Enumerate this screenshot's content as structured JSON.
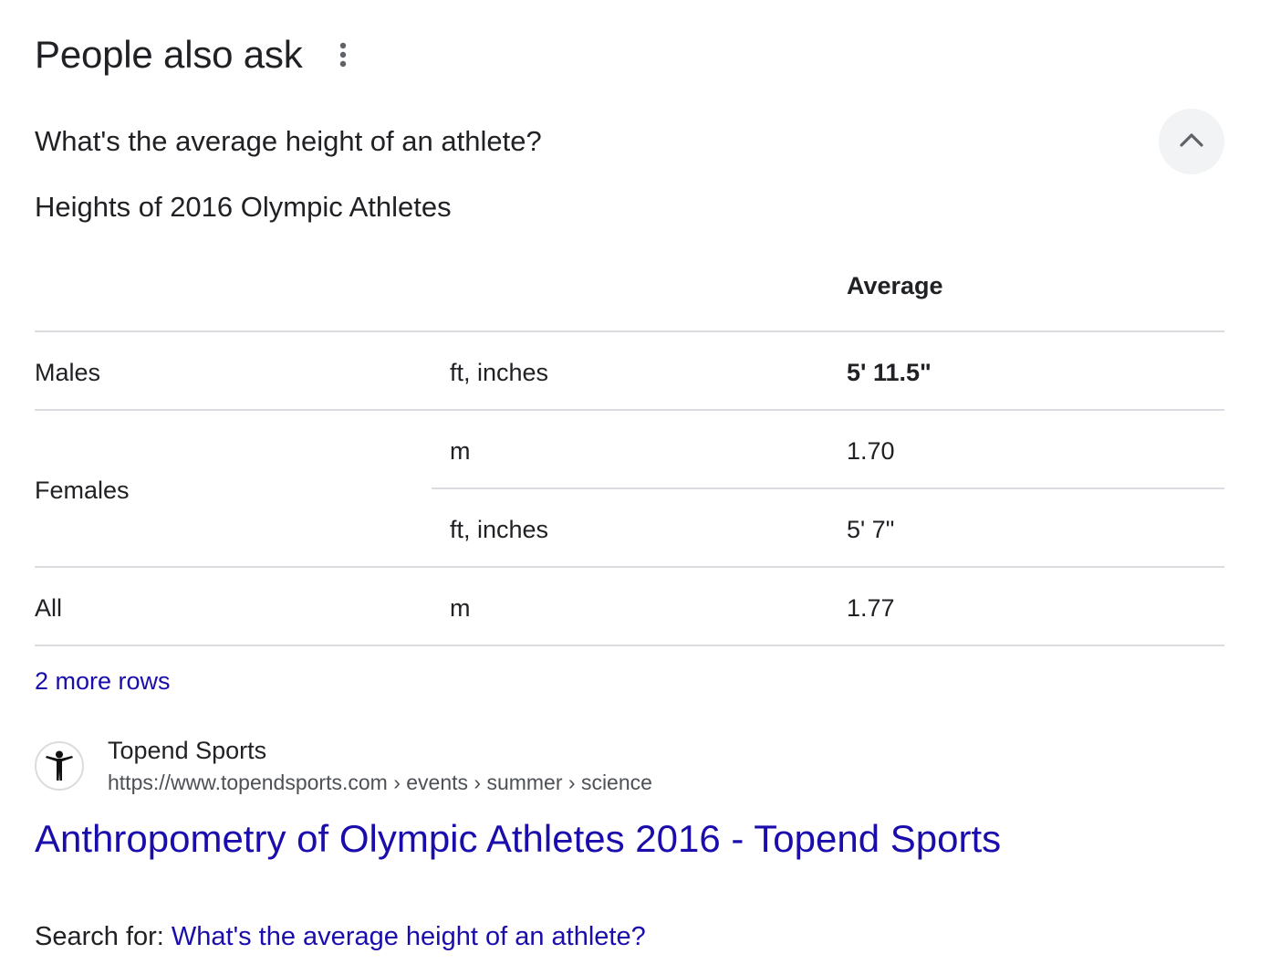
{
  "header": {
    "title": "People also ask",
    "more_icon": "more-vert-icon"
  },
  "question": {
    "text": "What's the average height of an athlete?",
    "toggle_icon": "chevron-up-icon"
  },
  "table": {
    "title": "Heights of 2016 Olympic Athletes",
    "header": [
      "",
      "",
      "Average"
    ],
    "rows": [
      {
        "group": "Males",
        "unit": "ft, inches",
        "value": "5' 11.5\""
      },
      {
        "group": "Females",
        "unit": "m",
        "value": "1.70"
      },
      {
        "group": "",
        "unit": "ft, inches",
        "value": "5' 7\""
      },
      {
        "group": "All",
        "unit": "m",
        "value": "1.77"
      }
    ],
    "more_rows": "2 more rows"
  },
  "source": {
    "favicon": "person-figure-icon",
    "name": "Topend Sports",
    "url": "https://www.topendsports.com › events › summer › science",
    "title": "Anthropometry of Olympic Athletes 2016 - Topend Sports"
  },
  "search_for": {
    "label": "Search for: ",
    "query": "What's the average height of an athlete?"
  },
  "colors": {
    "link": "#1a0dab",
    "text": "#202124",
    "divider": "#dadce0",
    "button_bg": "#f1f3f4"
  }
}
